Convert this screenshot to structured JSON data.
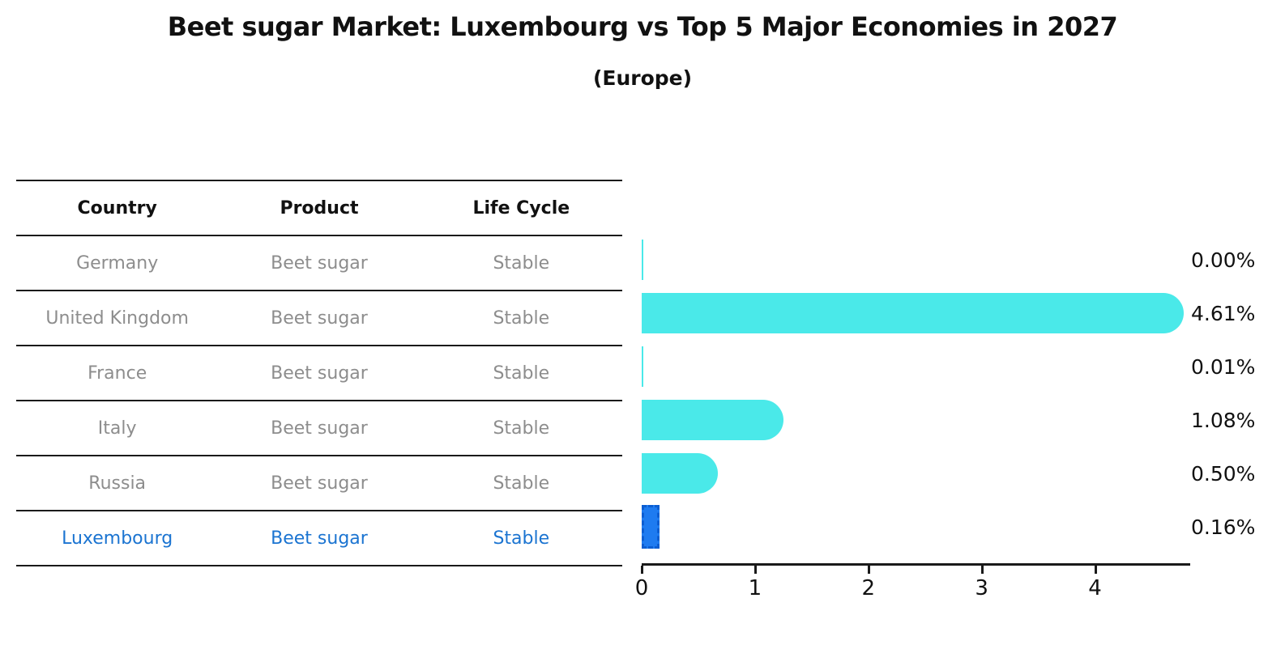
{
  "page": {
    "title": "Beet sugar Market: Luxembourg vs Top 5 Major Economies in 2027",
    "subtitle": "(Europe)"
  },
  "table": {
    "headers": [
      "Country",
      "Product",
      "Life Cycle"
    ],
    "rows": [
      {
        "country": "Germany",
        "product": "Beet sugar",
        "life_cycle": "Stable",
        "highlight": false
      },
      {
        "country": "United Kingdom",
        "product": "Beet sugar",
        "life_cycle": "Stable",
        "highlight": false
      },
      {
        "country": "France",
        "product": "Beet sugar",
        "life_cycle": "Stable",
        "highlight": false
      },
      {
        "country": "Italy",
        "product": "Beet sugar",
        "life_cycle": "Stable",
        "highlight": false
      },
      {
        "country": "Russia",
        "product": "Beet sugar",
        "life_cycle": "Stable",
        "highlight": false
      },
      {
        "country": "Luxembourg",
        "product": "Beet sugar",
        "life_cycle": "Stable",
        "highlight": true
      }
    ]
  },
  "chart_data": {
    "type": "bar",
    "orientation": "horizontal",
    "title": "Beet sugar Market: Luxembourg vs Top 5 Major Economies in 2027",
    "subtitle": "(Europe)",
    "categories": [
      "Germany",
      "United Kingdom",
      "France",
      "Italy",
      "Russia",
      "Luxembourg"
    ],
    "values": [
      0.0,
      4.61,
      0.01,
      1.08,
      0.5,
      0.16
    ],
    "value_labels": [
      "0.00%",
      "4.61%",
      "0.01%",
      "1.08%",
      "0.50%",
      "0.16%"
    ],
    "xlabel": "",
    "ylabel": "",
    "xlim": [
      0,
      4.84
    ],
    "x_ticks": [
      0,
      1,
      2,
      3,
      4
    ],
    "grid": false,
    "legend": "none",
    "bar_color": "#4ae9e9",
    "highlight_index": 5,
    "highlight_color": "#1e7bf0",
    "highlight_border_color": "#0c5ed2"
  }
}
